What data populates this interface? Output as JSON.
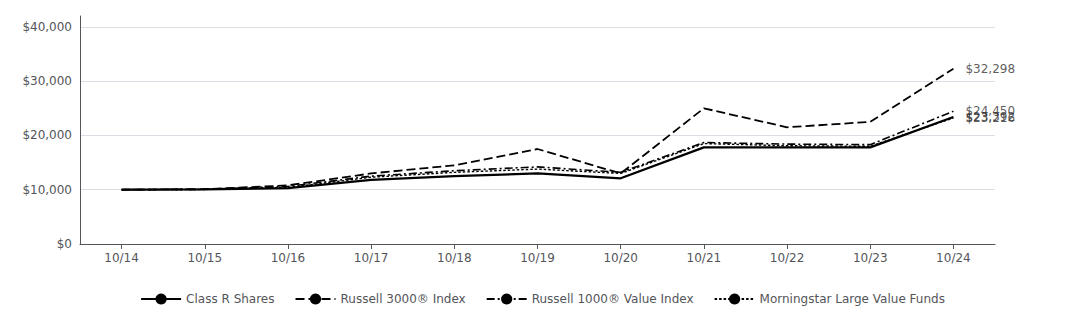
{
  "chart_data": {
    "type": "line",
    "categories": [
      "10/14",
      "10/15",
      "10/16",
      "10/17",
      "10/18",
      "10/19",
      "10/20",
      "10/21",
      "10/22",
      "10/23",
      "10/24"
    ],
    "series": [
      {
        "name": "Class R Shares",
        "color": "#000000",
        "line_style": "solid",
        "values": [
          10000,
          10050,
          10300,
          11800,
          12500,
          13000,
          12100,
          17800,
          17800,
          17800,
          23392
        ]
      },
      {
        "name": "Russell 3000® Index",
        "color": "#000000",
        "line_style": "dashed",
        "values": [
          10000,
          10100,
          10800,
          13000,
          14500,
          17500,
          13000,
          25000,
          21500,
          22500,
          32298
        ]
      },
      {
        "name": "Russell 1000® Value Index",
        "color": "#000000",
        "line_style": "dashdot",
        "values": [
          10000,
          10100,
          10600,
          12500,
          13500,
          14200,
          13200,
          18700,
          18400,
          18300,
          24450
        ]
      },
      {
        "name": "Morningstar Large Value Funds",
        "color": "#000000",
        "line_style": "dotted",
        "values": [
          10000,
          10050,
          10400,
          12300,
          13200,
          13800,
          13000,
          18500,
          18100,
          18000,
          23216
        ]
      }
    ],
    "ylim": [
      0,
      42000
    ],
    "yticks": [
      {
        "value": 0,
        "label": "$0"
      },
      {
        "value": 10000,
        "label": "$10,000"
      },
      {
        "value": 20000,
        "label": "$20,000"
      },
      {
        "value": 30000,
        "label": "$30,000"
      },
      {
        "value": 40000,
        "label": "$40,000"
      }
    ],
    "grid": true,
    "legend": "bottom",
    "annotations": [
      {
        "text": "$32,298",
        "x": "10/24",
        "y": 32298
      },
      {
        "text": "$24,450",
        "x": "10/24",
        "y": 24450
      },
      {
        "text": "$23,392",
        "x": "10/24",
        "y": 23392
      },
      {
        "text": "$23,216",
        "x": "10/24",
        "y": 23216
      }
    ]
  }
}
